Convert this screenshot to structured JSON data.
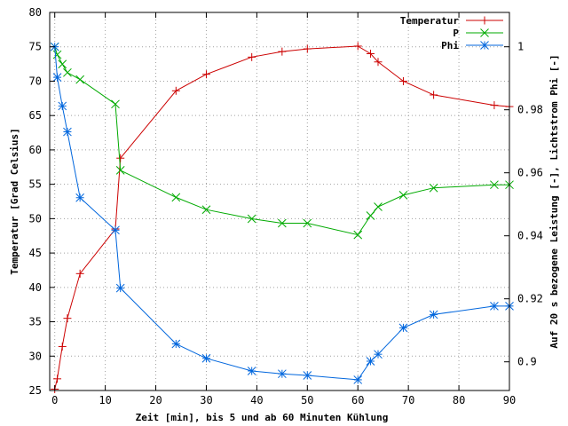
{
  "chart_data": {
    "type": "line",
    "title": "",
    "xlabel": "Zeit [min], bis 5 und ab 60 Minuten Kühlung",
    "ylabel": "Temperatur [Grad Celsius]",
    "y2label": "Auf 20 s bezogene Leistung [-], Lichtstrom Phi [-]",
    "xlim": [
      -1,
      90
    ],
    "ylim": [
      25,
      80
    ],
    "y2lim": [
      0.8909,
      1.0109
    ],
    "xticks": [
      "0",
      "10",
      "20",
      "30",
      "40",
      "50",
      "60",
      "70",
      "80",
      "90"
    ],
    "yticks": [
      "25",
      "30",
      "35",
      "40",
      "45",
      "50",
      "55",
      "60",
      "65",
      "70",
      "75",
      "80"
    ],
    "y2ticks": [
      "0.9",
      "0.92",
      "0.94",
      "0.96",
      "0.98",
      "1"
    ],
    "grid": true,
    "legend_position": "top-right",
    "series": [
      {
        "name": "Temperatur",
        "axis": "left",
        "color": "#cc0000",
        "marker": "plus",
        "x": [
          0,
          0.5,
          1.5,
          2.5,
          5,
          12,
          13,
          24,
          30,
          39,
          45,
          50,
          60,
          62.5,
          64,
          69,
          75,
          87,
          90
        ],
        "y": [
          25.2,
          26.7,
          31.4,
          35.5,
          42.0,
          48.5,
          58.8,
          68.6,
          71.0,
          73.5,
          74.3,
          74.7,
          75.1,
          74.0,
          72.8,
          70.0,
          68.0,
          66.5,
          66.3
        ]
      },
      {
        "name": "P",
        "axis": "right",
        "color": "#00aa00",
        "marker": "cross",
        "x": [
          0,
          0.5,
          1.5,
          2.5,
          5,
          12,
          13,
          24,
          30,
          39,
          45,
          50,
          60,
          62.5,
          64,
          69,
          75,
          87,
          90
        ],
        "y": [
          1.0,
          0.9975,
          0.9945,
          0.9918,
          0.9896,
          0.9818,
          0.9608,
          0.9522,
          0.9483,
          0.9454,
          0.944,
          0.944,
          0.9403,
          0.9464,
          0.9492,
          0.9529,
          0.9552,
          0.9562,
          0.9562
        ]
      },
      {
        "name": "Phi",
        "axis": "right",
        "color": "#0066dd",
        "marker": "asterisk",
        "x": [
          0,
          0.5,
          1.5,
          2.5,
          5,
          12,
          13,
          24,
          30,
          39,
          45,
          50,
          60,
          62.5,
          64,
          69,
          75,
          87,
          90
        ],
        "y": [
          1.0,
          0.9903,
          0.9812,
          0.973,
          0.9521,
          0.9418,
          0.9234,
          0.9057,
          0.9011,
          0.8971,
          0.8962,
          0.8957,
          0.8943,
          0.9002,
          0.9024,
          0.9108,
          0.915,
          0.9177,
          0.9177
        ]
      }
    ]
  }
}
